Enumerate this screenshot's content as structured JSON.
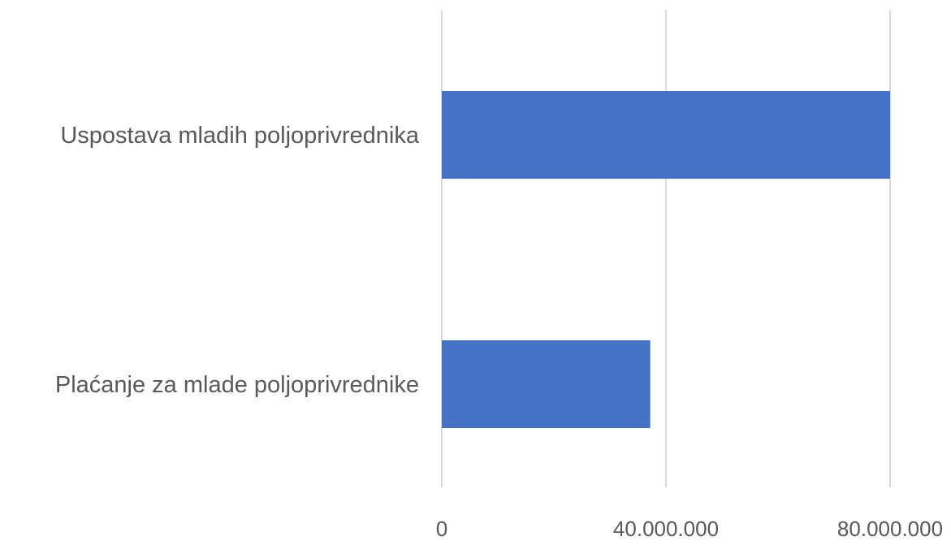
{
  "chart_data": {
    "type": "bar",
    "orientation": "horizontal",
    "categories": [
      "Uspostava mladih poljoprivrednika",
      "Plaćanje za mlade poljoprivrednike"
    ],
    "values": [
      80000000,
      37200000
    ],
    "xlim": [
      0,
      80000000
    ],
    "ticks": [
      0,
      40000000,
      80000000
    ],
    "tick_labels": [
      "0",
      "40.000.000",
      "80.000.000"
    ],
    "grid": true,
    "legend": false,
    "bar_color": "#4472C4",
    "title": "",
    "xlabel": "",
    "ylabel": ""
  }
}
